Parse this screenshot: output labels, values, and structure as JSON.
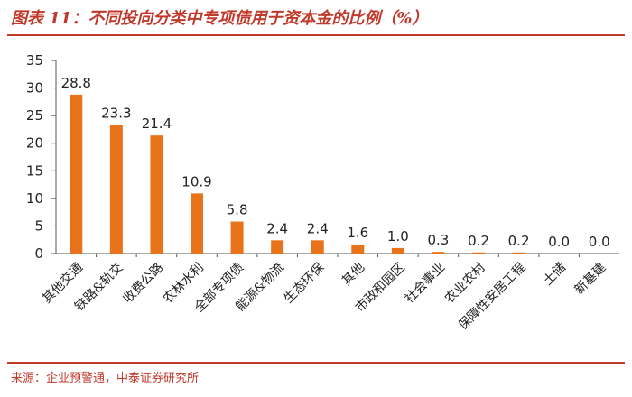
{
  "header": {
    "title": "图表 11：不同投向分类中专项债用于资本金的比例（%）"
  },
  "footer": {
    "source": "来源：企业预警通，中泰证券研究所"
  },
  "chart_data": {
    "type": "bar",
    "title": "图表 11：不同投向分类中专项债用于资本金的比例（%）",
    "xlabel": "",
    "ylabel": "",
    "ylim": [
      0,
      35
    ],
    "yticks": [
      0,
      5,
      10,
      15,
      20,
      25,
      30,
      35
    ],
    "grid": false,
    "legend": "none",
    "bar_color": "#e8731a",
    "categories": [
      "其他交通",
      "铁路&轨交",
      "收费公路",
      "农林水利",
      "全部专项债",
      "能源&物流",
      "生态环保",
      "其他",
      "市政和园区",
      "社会事业",
      "农业农村",
      "保障性安居工程",
      "土储",
      "新基建"
    ],
    "values": [
      28.8,
      23.3,
      21.4,
      10.9,
      5.8,
      2.4,
      2.4,
      1.6,
      1.0,
      0.3,
      0.2,
      0.2,
      0.0,
      0.0
    ],
    "data_labels": [
      "28.8",
      "23.3",
      "21.4",
      "10.9",
      "5.8",
      "2.4",
      "2.4",
      "1.6",
      "1.0",
      "0.3",
      "0.2",
      "0.2",
      "0.0",
      "0.0"
    ]
  }
}
